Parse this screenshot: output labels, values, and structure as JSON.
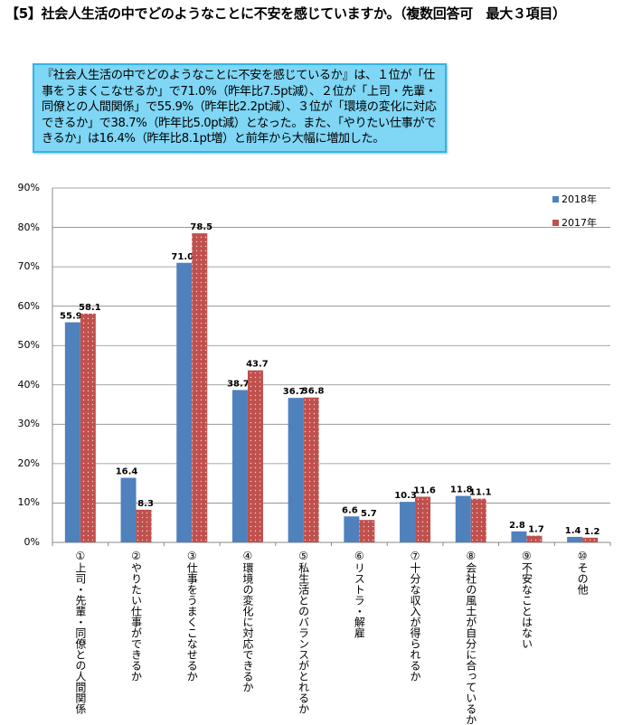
{
  "title": "【5】社会人生活の中でどのようなことに不安を感じていますか。（複数回答可　最大３項目）",
  "summary": "『社会人生活の中でどのようなことに不安を感じているか』は、１位が「仕事をうまくこなせるか」で71.0%（昨年比7.5pt減）、２位が「上司・先輩・同僚との人間関係」で55.9%（昨年比2.2pt減）、３位が「環境の変化に対応できるか」で38.7%（昨年比5.0pt減）となった。また、「やりたい仕事ができるか」は16.4%（昨年比8.1pt増）と前年から大幅に増加した。",
  "chart_data": {
    "type": "bar",
    "categories": [
      "①上司・先輩・同僚との人間関係",
      "②やりたい仕事ができるか",
      "③仕事をうまくこなせるか",
      "④環境の変化に対応できるか",
      "⑤私生活とのバランスがとれるか",
      "⑥リストラ・解雇",
      "⑦十分な収入が得られるか",
      "⑧会社の風土が自分に合っているか",
      "⑨不安なことはない",
      "⑩その他"
    ],
    "series": [
      {
        "name": "2018年",
        "color": "#4f81bd",
        "values": [
          55.9,
          16.4,
          71.0,
          38.7,
          36.7,
          6.6,
          10.3,
          11.8,
          2.8,
          1.4
        ]
      },
      {
        "name": "2017年",
        "color": "#c0504d",
        "values": [
          58.1,
          8.3,
          78.5,
          43.7,
          36.8,
          5.7,
          11.6,
          11.1,
          1.7,
          1.2
        ]
      }
    ],
    "ylim": [
      0,
      90
    ],
    "yticks": [
      "0%",
      "10%",
      "20%",
      "30%",
      "40%",
      "50%",
      "60%",
      "70%",
      "80%",
      "90%"
    ],
    "grid": true,
    "legend": "top-right"
  }
}
